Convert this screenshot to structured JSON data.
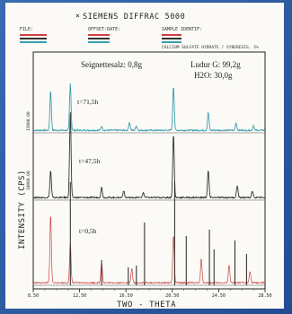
{
  "header": {
    "title": "SIEMENS DIFFRAC 5000",
    "file_label": "FILE:",
    "offset_label": "OFFSET:DATE:",
    "sample_label": "SAMPLE IDENTIF:",
    "description": "CALCIUM SULFATE HYDRATE / SYNERESIS, 5%"
  },
  "annotations": {
    "seignettesalz": "Seignettesalz: 0,8g",
    "ludur": "Ludur G: 99,2g",
    "water": "H2O: 30,0g"
  },
  "chart_data": {
    "type": "line",
    "xlabel": "TWO - THETA",
    "ylabel": "INTENSITY (CPS)",
    "xlim": [
      8.5,
      28.5
    ],
    "x_ticks": [
      "8.50",
      "12.50",
      "16.50",
      "20.50",
      "24.50",
      "28.50"
    ],
    "y_ticks": [
      "10000.00",
      "15000.00"
    ],
    "series": [
      {
        "name": "t=71,5h",
        "color": "#3a9fb0",
        "peaks": [
          {
            "x": 10.0,
            "h": 50
          },
          {
            "x": 11.7,
            "h": 58
          },
          {
            "x": 14.4,
            "h": 5
          },
          {
            "x": 16.8,
            "h": 10
          },
          {
            "x": 17.4,
            "h": 6
          },
          {
            "x": 20.6,
            "h": 55
          },
          {
            "x": 23.6,
            "h": 22
          },
          {
            "x": 26.0,
            "h": 9
          },
          {
            "x": 27.5,
            "h": 6
          }
        ]
      },
      {
        "name": "t=47,5h",
        "color": "#333333",
        "peaks": [
          {
            "x": 10.0,
            "h": 32
          },
          {
            "x": 11.7,
            "h": 100
          },
          {
            "x": 14.4,
            "h": 12
          },
          {
            "x": 16.3,
            "h": 8
          },
          {
            "x": 18.0,
            "h": 6
          },
          {
            "x": 20.6,
            "h": 75
          },
          {
            "x": 23.6,
            "h": 32
          },
          {
            "x": 26.1,
            "h": 14
          },
          {
            "x": 27.4,
            "h": 8
          }
        ]
      },
      {
        "name": "t=0,5h",
        "color": "#d04040",
        "peaks": [
          {
            "x": 10.0,
            "h": 85
          },
          {
            "x": 11.7,
            "h": 48
          },
          {
            "x": 14.4,
            "h": 25
          },
          {
            "x": 17.0,
            "h": 18
          },
          {
            "x": 20.6,
            "h": 60
          },
          {
            "x": 23.0,
            "h": 30
          },
          {
            "x": 25.4,
            "h": 22
          },
          {
            "x": 27.2,
            "h": 15
          }
        ]
      }
    ],
    "reference_lines": [
      {
        "x": 11.7,
        "h": 115
      },
      {
        "x": 14.4,
        "h": 28
      },
      {
        "x": 16.7,
        "h": 20
      },
      {
        "x": 17.4,
        "h": 22
      },
      {
        "x": 18.1,
        "h": 70
      },
      {
        "x": 20.7,
        "h": 115
      },
      {
        "x": 21.7,
        "h": 55
      },
      {
        "x": 23.7,
        "h": 62
      },
      {
        "x": 24.1,
        "h": 40
      },
      {
        "x": 25.9,
        "h": 50
      },
      {
        "x": 26.9,
        "h": 35
      }
    ]
  }
}
